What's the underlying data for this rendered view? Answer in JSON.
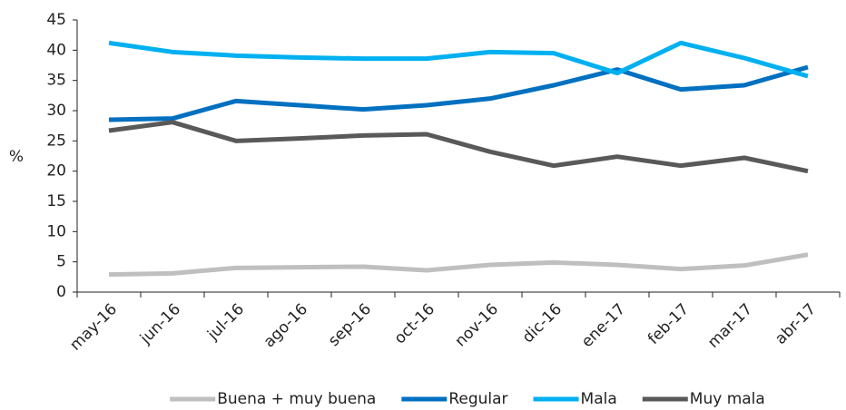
{
  "chart_data": {
    "type": "line",
    "y_label": "%",
    "categories": [
      "may-16",
      "jun-16",
      "jul-16",
      "ago-16",
      "sep-16",
      "oct-16",
      "nov-16",
      "dic-16",
      "ene-17",
      "feb-17",
      "mar-17",
      "abr-17"
    ],
    "series": [
      {
        "name": "Buena + muy buena",
        "color": "#bfbfbf",
        "values": [
          2.9,
          3.1,
          4.0,
          4.1,
          4.2,
          3.6,
          4.5,
          4.9,
          4.5,
          3.8,
          4.4,
          6.2
        ]
      },
      {
        "name": "Regular",
        "color": "#0070c0",
        "values": [
          28.5,
          28.7,
          31.6,
          30.9,
          30.2,
          30.9,
          32.0,
          34.2,
          36.8,
          33.5,
          34.2,
          37.2
        ]
      },
      {
        "name": "Mala",
        "color": "#00b0f0",
        "values": [
          41.2,
          39.7,
          39.1,
          38.8,
          38.6,
          38.6,
          39.7,
          39.5,
          36.2,
          41.2,
          38.7,
          35.7
        ]
      },
      {
        "name": "Muy mala",
        "color": "#595959",
        "values": [
          26.7,
          28.1,
          25.0,
          25.4,
          25.9,
          26.1,
          23.2,
          20.9,
          22.4,
          20.9,
          22.2,
          20.0
        ]
      }
    ],
    "ylim": [
      0,
      45
    ],
    "yticks": [
      0,
      5,
      10,
      15,
      20,
      25,
      30,
      35,
      40,
      45
    ],
    "legend": "bottom"
  }
}
